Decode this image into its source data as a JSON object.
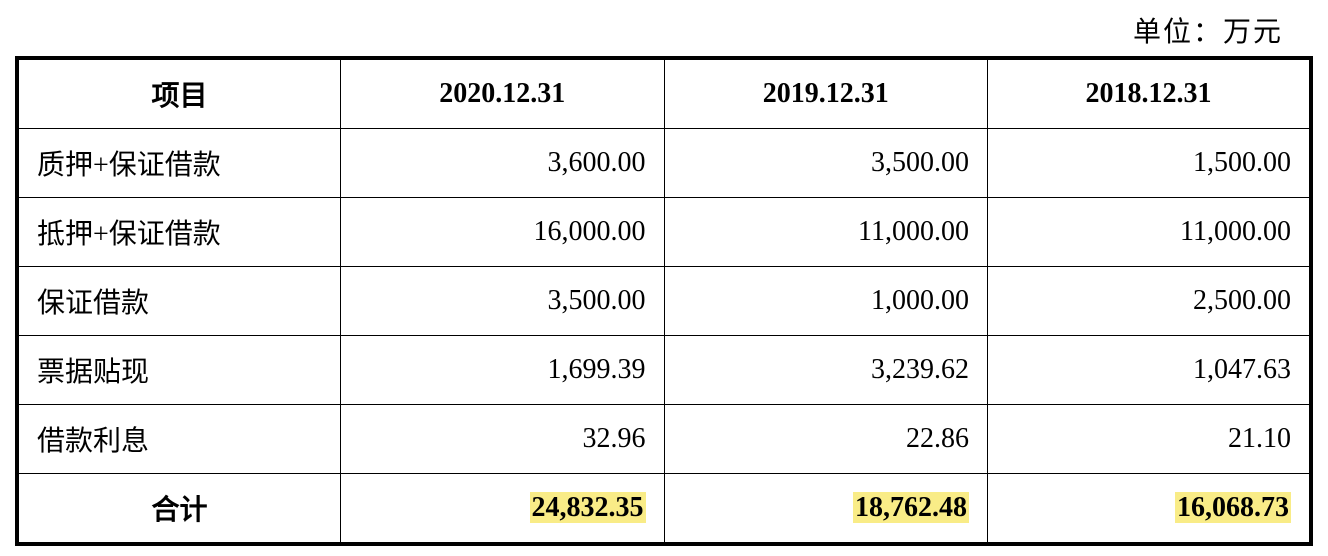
{
  "unit_label": "单位：万元",
  "table": {
    "columns": [
      "项目",
      "2020.12.31",
      "2019.12.31",
      "2018.12.31"
    ],
    "rows": [
      {
        "label": "质押+保证借款",
        "v1": "3,600.00",
        "v2": "3,500.00",
        "v3": "1,500.00"
      },
      {
        "label": "抵押+保证借款",
        "v1": "16,000.00",
        "v2": "11,000.00",
        "v3": "11,000.00"
      },
      {
        "label": "保证借款",
        "v1": "3,500.00",
        "v2": "1,000.00",
        "v3": "2,500.00"
      },
      {
        "label": "票据贴现",
        "v1": "1,699.39",
        "v2": "3,239.62",
        "v3": "1,047.63"
      },
      {
        "label": "借款利息",
        "v1": "32.96",
        "v2": "22.86",
        "v3": "21.10"
      }
    ],
    "total": {
      "label": "合计",
      "v1": "24,832.35",
      "v2": "18,762.48",
      "v3": "16,068.73"
    },
    "highlight_color": "#f9ec87",
    "border_color": "#000000",
    "text_color": "#000000",
    "font_size_pt": 21,
    "header_align": "center",
    "value_align": "right",
    "label_align": "left"
  }
}
